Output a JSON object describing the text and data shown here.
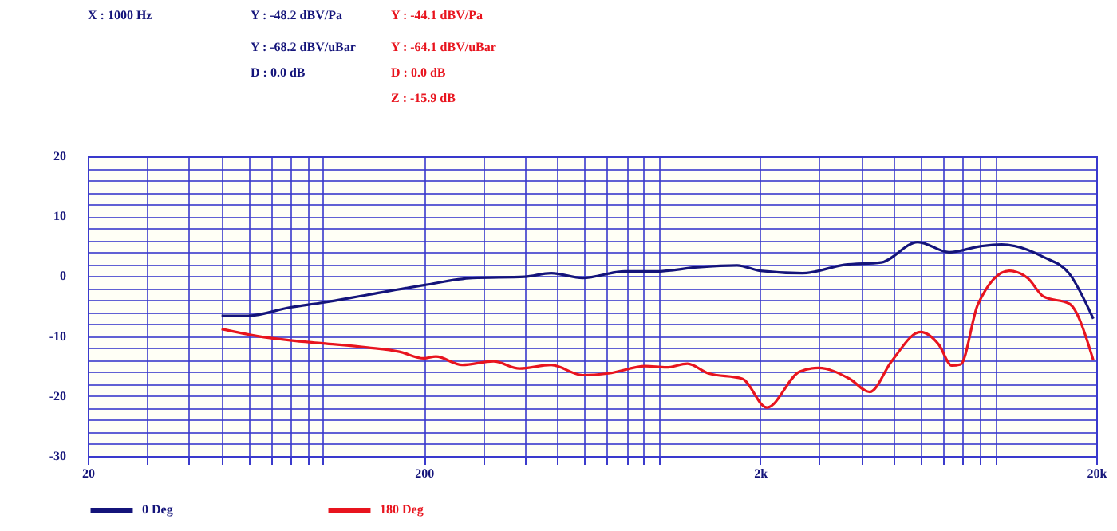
{
  "chart_data": {
    "type": "line",
    "annotations": [
      "X : 1000 Hz",
      "Y : -48.2 dBV/Pa",
      "Y : -68.2 dBV/uBar",
      "D : 0.0 dB",
      "Y : -44.1 dBV/Pa",
      "Y : -64.1 dBV/uBar",
      "D : 0.0 dB",
      "Z : -15.9 dB"
    ],
    "series": [
      {
        "name": "0 Deg",
        "color": "#14147a",
        "x": [
          50,
          60,
          80,
          100,
          136,
          200,
          279,
          399,
          478,
          593,
          791,
          980,
          1306,
          1709,
          2000,
          2673,
          3557,
          4580,
          5890,
          7300,
          9050,
          10450,
          13940,
          16640,
          19600
        ],
        "values": [
          -6.6,
          -6.6,
          -5.2,
          -4.4,
          -3.1,
          -1.5,
          -0.3,
          -0.1,
          0.5,
          -0.3,
          0.8,
          0.8,
          1.5,
          1.8,
          0.9,
          0.5,
          1.9,
          2.3,
          5.7,
          4.0,
          5.0,
          5.3,
          3.2,
          0.4,
          -7.1
        ]
      },
      {
        "name": "180 Deg",
        "color": "#e8141e",
        "x": [
          50,
          64,
          80,
          100,
          136,
          169,
          200,
          217,
          260,
          322,
          385,
          478,
          593,
          708,
          912,
          1052,
          1216,
          1403,
          1770,
          2095,
          2625,
          2980,
          3690,
          4240,
          4920,
          6000,
          6800,
          7430,
          7900,
          8890,
          11020,
          12500,
          13940,
          16640,
          19600
        ],
        "values": [
          -8.8,
          -10.0,
          -10.7,
          -11.2,
          -11.9,
          -12.6,
          -13.7,
          -13.4,
          -14.8,
          -14.2,
          -15.4,
          -14.8,
          -16.5,
          -16.2,
          -15.0,
          -15.2,
          -14.6,
          -16.2,
          -17.1,
          -21.9,
          -15.9,
          -15.3,
          -17.1,
          -19.3,
          -14.2,
          -9.3,
          -11.4,
          -14.9,
          -14.7,
          -4.7,
          0.9,
          -0.3,
          -3.4,
          -4.6,
          -14.0
        ]
      }
    ],
    "log": "x",
    "xlim": [
      20,
      20000
    ],
    "xticks": [
      20,
      {
        "value": 30,
        "label": null
      },
      {
        "value": 40,
        "label": null
      },
      {
        "value": 50,
        "label": null
      },
      {
        "value": 60,
        "label": null
      },
      {
        "value": 70,
        "label": null
      },
      {
        "value": 80,
        "label": null
      },
      {
        "value": 90,
        "label": null
      },
      {
        "value": 100,
        "label": null
      },
      200,
      {
        "value": 300,
        "label": null
      },
      {
        "value": 400,
        "label": null
      },
      {
        "value": 500,
        "label": null
      },
      {
        "value": 600,
        "label": null
      },
      {
        "value": 700,
        "label": null
      },
      {
        "value": 800,
        "label": null
      },
      {
        "value": 900,
        "label": null
      },
      {
        "value": 1000,
        "label": null
      },
      {
        "value": 2000,
        "label": "2k"
      },
      {
        "value": 3000,
        "label": null
      },
      {
        "value": 4000,
        "label": null
      },
      {
        "value": 5000,
        "label": null
      },
      {
        "value": 6000,
        "label": null
      },
      {
        "value": 7000,
        "label": null
      },
      {
        "value": 8000,
        "label": null
      },
      {
        "value": 9000,
        "label": null
      },
      {
        "value": 10000,
        "label": null
      },
      {
        "value": 20000,
        "label": "20k"
      }
    ],
    "ylim": [
      -30,
      20
    ],
    "yticks": [
      -30,
      {
        "value": -28,
        "label": null
      },
      {
        "value": -26,
        "label": null
      },
      {
        "value": -24,
        "label": null
      },
      {
        "value": -22,
        "label": null
      },
      -20,
      {
        "value": -18,
        "label": null
      },
      {
        "value": -16,
        "label": null
      },
      {
        "value": -14,
        "label": null
      },
      {
        "value": -12,
        "label": null
      },
      -10,
      {
        "value": -8,
        "label": null
      },
      {
        "value": -6,
        "label": null
      },
      {
        "value": -4,
        "label": null
      },
      {
        "value": -2,
        "label": null
      },
      0,
      {
        "value": 2,
        "label": null
      },
      {
        "value": 4,
        "label": null
      },
      {
        "value": 6,
        "label": null
      },
      {
        "value": 8,
        "label": null
      },
      10,
      {
        "value": 12,
        "label": null
      },
      {
        "value": 14,
        "label": null
      },
      {
        "value": 16,
        "label": null
      },
      {
        "value": 18,
        "label": null
      },
      20
    ],
    "grid": true,
    "legend": "bottom",
    "marker": "none",
    "line_style": "solid"
  }
}
